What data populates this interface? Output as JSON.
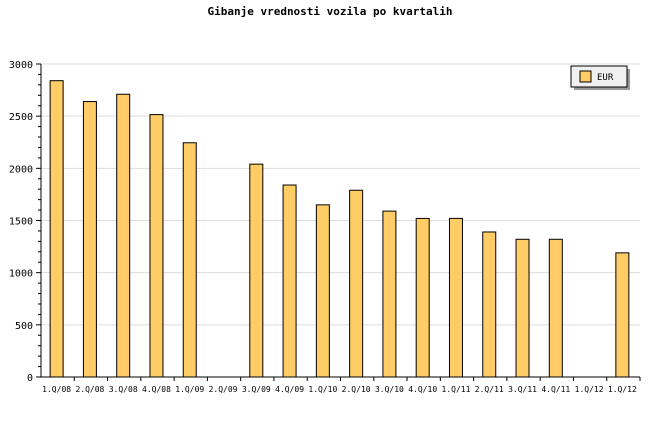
{
  "chart_data": {
    "type": "bar",
    "title": "Gibanje vrednosti vozila po kvartalih",
    "xlabel": "",
    "ylabel": "",
    "ylim": [
      0,
      3000
    ],
    "yticks": [
      0,
      500,
      1000,
      1500,
      2000,
      2500,
      3000
    ],
    "grid": true,
    "legend_position": "top-right",
    "categories": [
      "1.Q/08",
      "2.Q/08",
      "3.Q/08",
      "4.Q/08",
      "1.Q/09",
      "2.Q/09",
      "3.Q/09",
      "4.Q/09",
      "1.Q/10",
      "2.Q/10",
      "3.Q/10",
      "4.Q/10",
      "1.Q/11",
      "2.Q/11",
      "3.Q/11",
      "4.Q/11",
      "1.Q/12",
      "1.Q/12"
    ],
    "series": [
      {
        "name": "EUR",
        "color": "#ffcc66",
        "values": [
          2840,
          2640,
          2710,
          2515,
          2245,
          null,
          2040,
          1840,
          1650,
          1790,
          1590,
          1520,
          1520,
          1390,
          1320,
          1320,
          null,
          1190
        ]
      }
    ]
  }
}
